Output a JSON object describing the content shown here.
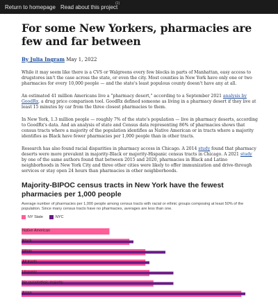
{
  "nav": {
    "home": "Return to homepage",
    "about": "Read about this project",
    "sup": "(1)"
  },
  "article": {
    "title": "For some New Yorkers, pharmacies are few and far between",
    "author": "By Julia Ingram",
    "date": "May 1, 2022",
    "p1": "While it may seem like there is a CVS or Walgreens every few blocks in parts of Manhattan, easy access to drugstores isn't the case across the state, or even the city. Most counties in New York have only one or two pharmacies for every 10,000 people — and the state's least populous county doesn't have any at all.",
    "p2_pre": "An estimated 41 million Americans live a \"pharmacy desert,\" according to a September 2021 ",
    "p2_link": "analysis by GoodRx",
    "p2_post": ", a drug price comparison tool. GoodRx defined someone as living in a pharmacy desert if they live at least 15 minutes by car from the three closest pharmacies to them.",
    "p3": "In New York, 1.3 million people — roughly 7% of the state's population — live in pharmacy deserts, according to GoodRx's data. And an analysis of state and Census data representing 86% of pharmacies shows that census tracts where a majority of the population identifies as Native American or in tracts where a majority identifies as Black have fewer pharmacies per 1,000 people than in other tracts.",
    "p4_a": "Research has also found racial disparities in pharmacy access in Chicago. A 2014 ",
    "p4_link1": "study",
    "p4_b": " found that pharmacy deserts were more prevalent in majority-Black or majority-Hispanic census tracts in Chicago. A 2021 ",
    "p4_link2": "study",
    "p4_c": " by one of the same authors found that between 2015 and 2020, pharmacies in Black and Latino neighborhoods in New York City and three other cities were likely to offer immunization and drive-through services or stay open 24 hours than pharmacies in other neighborhoods."
  },
  "chart_data": {
    "type": "bar",
    "title": "Majority-BIPOC census tracts in New York have the fewest pharmacies per 1,000 people",
    "subtitle": "Average number of pharmacies per 1,000 people among census tracts with racial or ethnic groups composing at least 50% of the population. Since many census tracts have no pharmacies, averages are less than one.",
    "categories": [
      "Native American",
      "Black",
      "White",
      "All tracts",
      "Hispanic",
      "No racial/ethnic majority",
      "Asian"
    ],
    "series": [
      {
        "name": "NY State",
        "color": "#ff5c99",
        "values": [
          0.22,
          0.27,
          0.31,
          0.31,
          0.32,
          0.33,
          0.55
        ]
      },
      {
        "name": "NYC",
        "color": "#6b1a86",
        "values": [
          0.0,
          0.28,
          0.36,
          0.32,
          0.38,
          0.38,
          0.56
        ]
      }
    ],
    "xlim": [
      0,
      0.6
    ],
    "xlabel": "",
    "ylabel": "",
    "legend": "top-left"
  }
}
